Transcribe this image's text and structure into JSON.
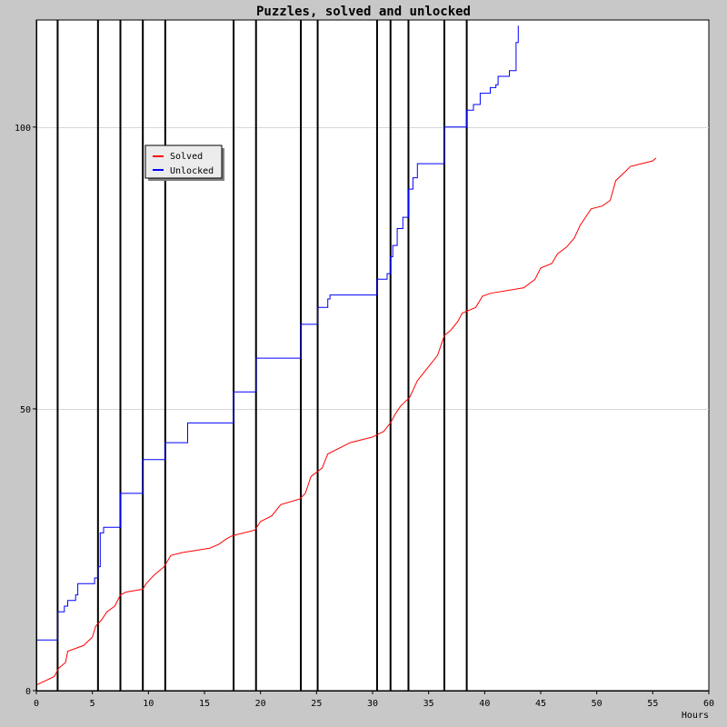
{
  "chart_data": {
    "type": "line",
    "title": "Puzzles, solved and unlocked",
    "xlabel": "Hours",
    "ylabel": "",
    "xlim": [
      0,
      60
    ],
    "ylim": [
      0,
      119
    ],
    "x_ticks": [
      0,
      5,
      10,
      15,
      20,
      25,
      30,
      35,
      40,
      45,
      50,
      55,
      60
    ],
    "x_tick_labels": [
      "0",
      "5",
      "10",
      "15",
      "20",
      "25",
      "30",
      "35",
      "40",
      "45",
      "50",
      "55",
      "60"
    ],
    "y_ticks": [
      0,
      50,
      100
    ],
    "y_tick_labels": [
      "0",
      "50",
      "100"
    ],
    "grid": "horizontal",
    "legend_position": "upper-left",
    "vertical_markers": [
      1.9,
      5.5,
      7.5,
      9.5,
      11.5,
      17.6,
      19.6,
      23.6,
      25.1,
      30.4,
      31.6,
      33.2,
      36.4,
      38.4
    ],
    "series": [
      {
        "name": "Solved",
        "color": "#ff0000",
        "step": false,
        "points": [
          [
            0,
            1
          ],
          [
            1.6,
            2.5
          ],
          [
            2.0,
            4
          ],
          [
            2.6,
            5
          ],
          [
            2.8,
            7
          ],
          [
            3.5,
            7.5
          ],
          [
            4.2,
            8
          ],
          [
            5.0,
            9.5
          ],
          [
            5.3,
            11.5
          ],
          [
            5.8,
            12.5
          ],
          [
            6.3,
            14
          ],
          [
            7.0,
            15
          ],
          [
            7.5,
            17
          ],
          [
            8.0,
            17.5
          ],
          [
            9.5,
            18
          ],
          [
            9.8,
            19
          ],
          [
            10.5,
            20.5
          ],
          [
            11.4,
            22
          ],
          [
            12.0,
            24
          ],
          [
            13.0,
            24.5
          ],
          [
            15.5,
            25.3
          ],
          [
            16.3,
            26
          ],
          [
            17.0,
            27
          ],
          [
            17.5,
            27.5
          ],
          [
            19.5,
            28.5
          ],
          [
            20.0,
            30
          ],
          [
            21.0,
            31
          ],
          [
            21.8,
            33
          ],
          [
            23.5,
            34
          ],
          [
            24.0,
            35
          ],
          [
            24.5,
            38
          ],
          [
            25.5,
            39.5
          ],
          [
            26.0,
            42
          ],
          [
            28.0,
            44
          ],
          [
            30.0,
            45
          ],
          [
            31.0,
            46
          ],
          [
            31.6,
            47.5
          ],
          [
            32.0,
            49
          ],
          [
            32.5,
            50.5
          ],
          [
            33.3,
            52
          ],
          [
            34.0,
            55
          ],
          [
            35.0,
            57.5
          ],
          [
            35.8,
            59.5
          ],
          [
            36.4,
            63
          ],
          [
            37.0,
            64
          ],
          [
            37.6,
            65.5
          ],
          [
            38.0,
            67
          ],
          [
            39.2,
            68
          ],
          [
            39.8,
            70
          ],
          [
            40.5,
            70.5
          ],
          [
            43.5,
            71.5
          ],
          [
            44.5,
            73
          ],
          [
            45.0,
            75
          ],
          [
            46.0,
            75.8
          ],
          [
            46.5,
            77.5
          ],
          [
            47.3,
            78.7
          ],
          [
            48.0,
            80.3
          ],
          [
            48.5,
            82.5
          ],
          [
            49.0,
            84
          ],
          [
            49.5,
            85.5
          ],
          [
            50.5,
            86
          ],
          [
            51.2,
            87
          ],
          [
            51.7,
            90.5
          ],
          [
            52.5,
            92
          ],
          [
            53.0,
            93
          ],
          [
            54.0,
            93.5
          ],
          [
            55.0,
            94
          ],
          [
            55.3,
            94.5
          ]
        ]
      },
      {
        "name": "Unlocked",
        "color": "#0000ff",
        "step": true,
        "points": [
          [
            0,
            9
          ],
          [
            1.9,
            14
          ],
          [
            2.5,
            15
          ],
          [
            2.8,
            16
          ],
          [
            3.5,
            17
          ],
          [
            3.7,
            19
          ],
          [
            5.2,
            20
          ],
          [
            5.5,
            22
          ],
          [
            5.7,
            28
          ],
          [
            6.0,
            29
          ],
          [
            7.5,
            35
          ],
          [
            9.5,
            41
          ],
          [
            11.5,
            44
          ],
          [
            13.5,
            47.5
          ],
          [
            17.6,
            53
          ],
          [
            19.6,
            59
          ],
          [
            23.6,
            65
          ],
          [
            25.1,
            68
          ],
          [
            26.0,
            69.5
          ],
          [
            26.2,
            70.2
          ],
          [
            30.4,
            73
          ],
          [
            31.3,
            74
          ],
          [
            31.6,
            77
          ],
          [
            31.8,
            79
          ],
          [
            32.2,
            82
          ],
          [
            32.7,
            84
          ],
          [
            33.2,
            89
          ],
          [
            33.6,
            91
          ],
          [
            34.0,
            93.5
          ],
          [
            36.4,
            100
          ],
          [
            38.4,
            103
          ],
          [
            39.0,
            104
          ],
          [
            39.6,
            106
          ],
          [
            40.5,
            107
          ],
          [
            41.0,
            107.5
          ],
          [
            41.2,
            109
          ],
          [
            42.2,
            110
          ],
          [
            42.8,
            115
          ],
          [
            43.0,
            118
          ]
        ]
      }
    ]
  }
}
